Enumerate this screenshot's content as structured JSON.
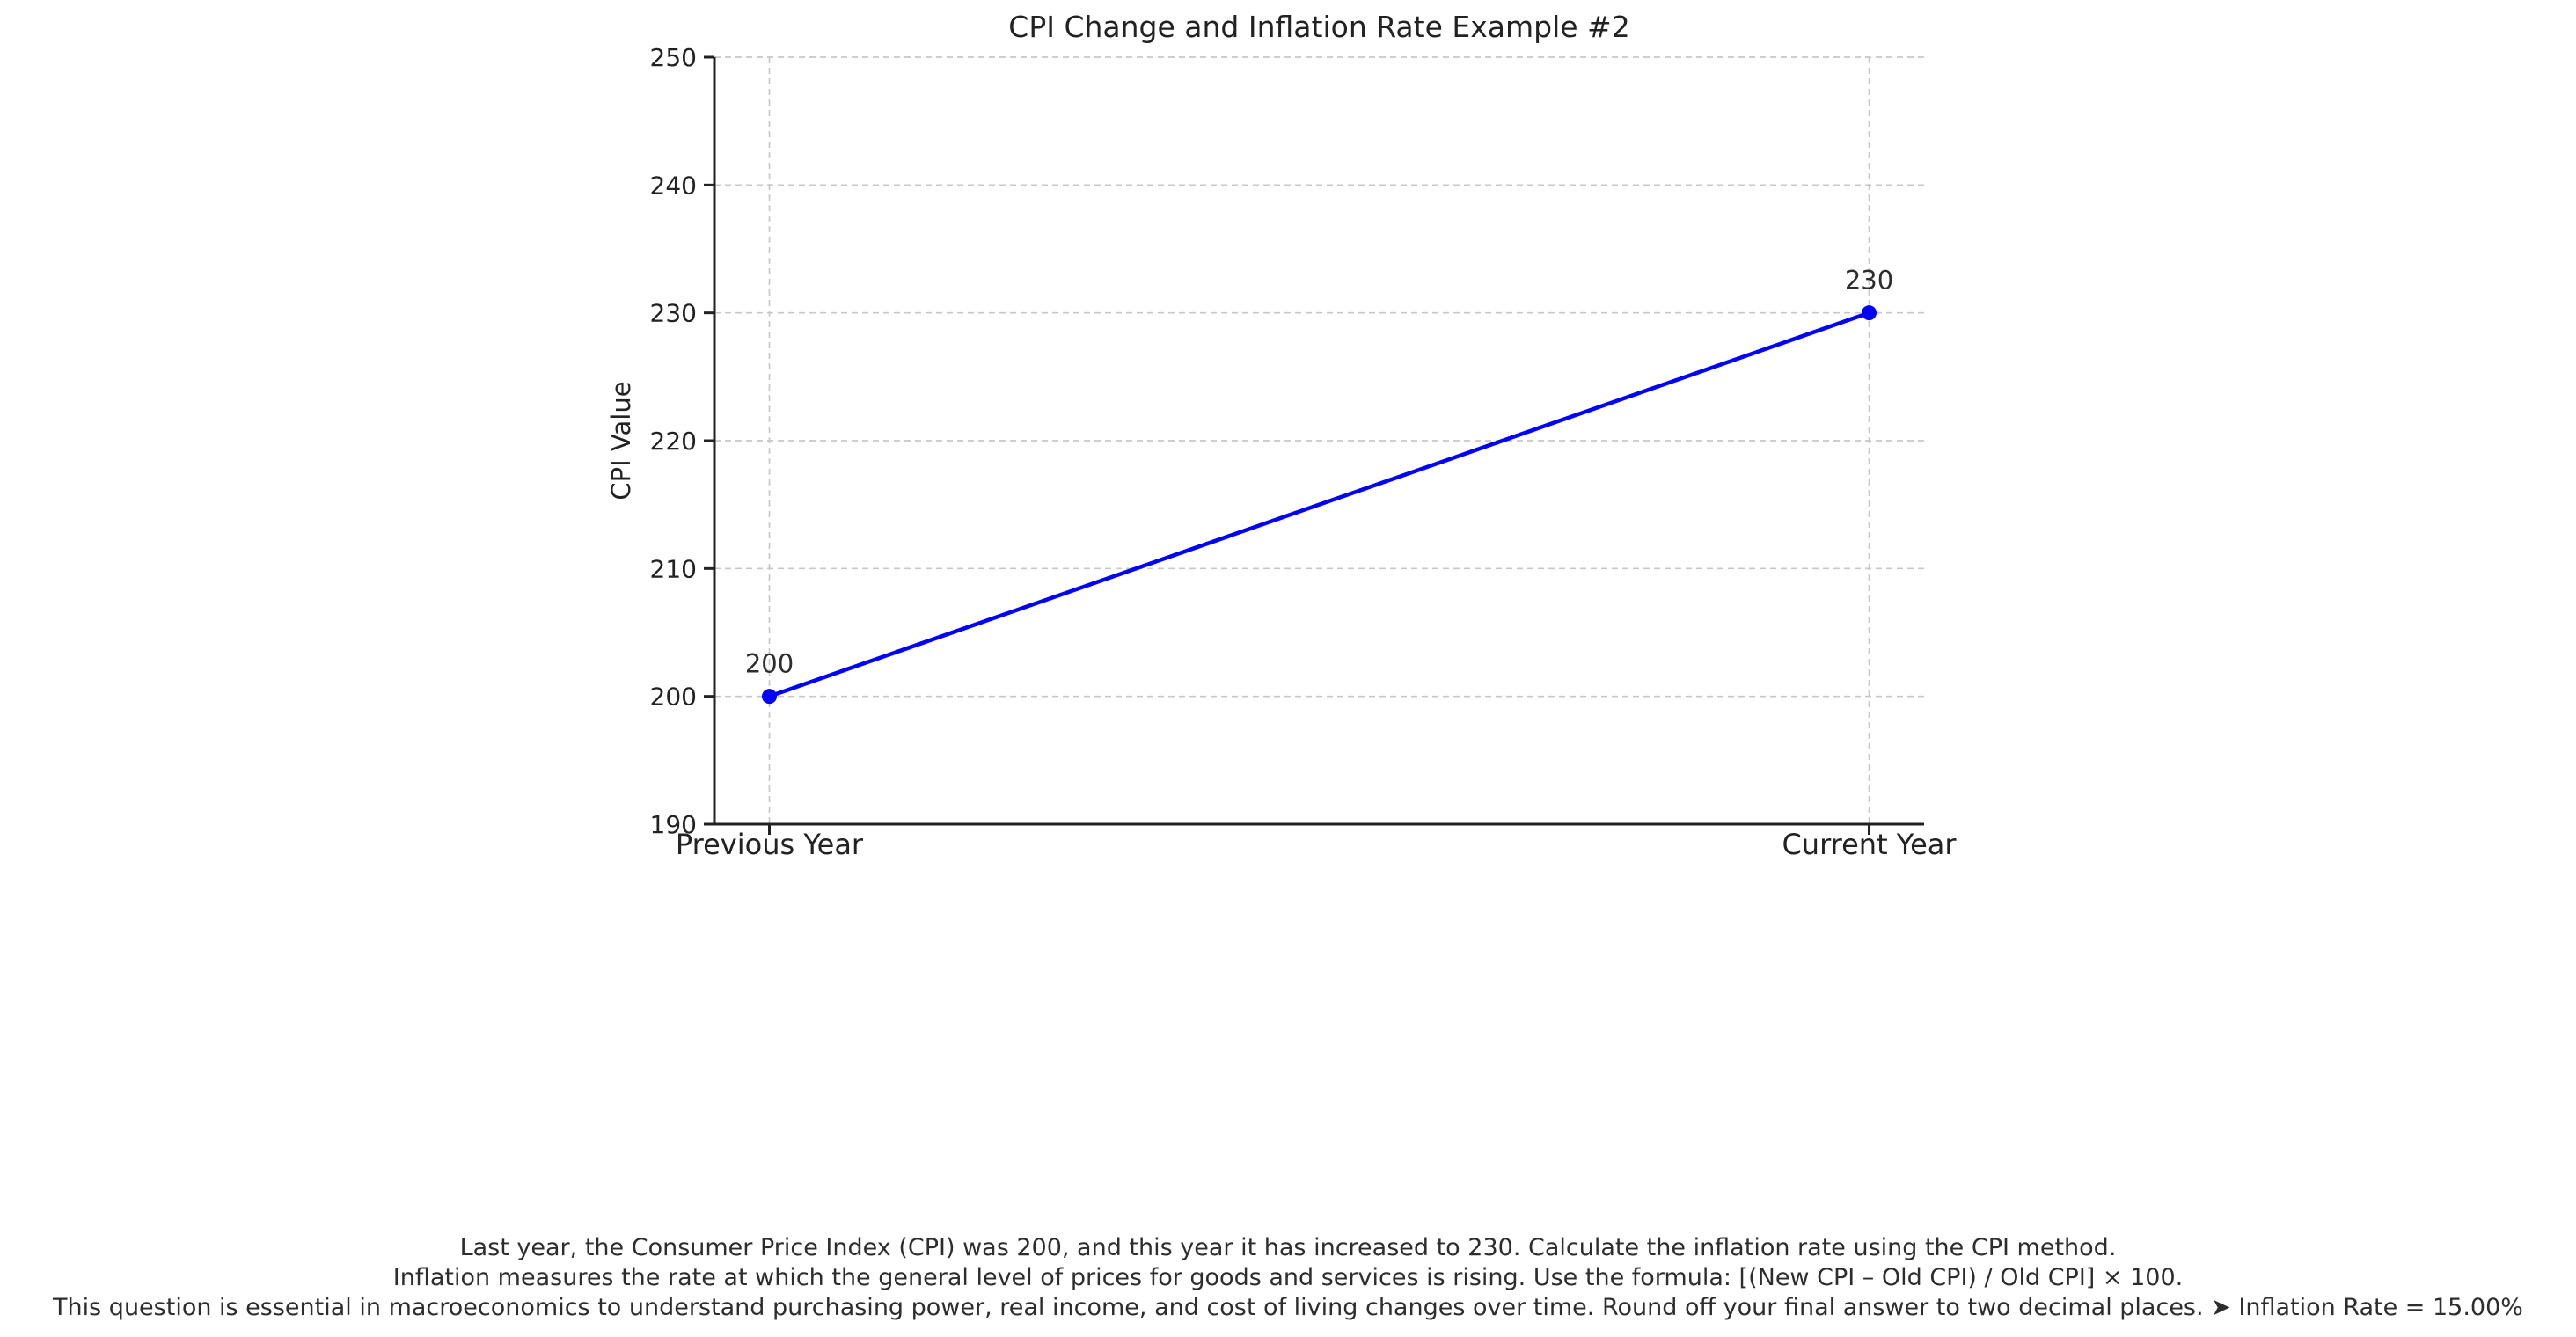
{
  "chart_data": {
    "type": "line",
    "title": "CPI Change and Inflation Rate Example #2",
    "ylabel": "CPI Value",
    "xlabel": "",
    "categories": [
      "Previous Year",
      "Current Year"
    ],
    "values": [
      200,
      230
    ],
    "point_labels": [
      "200",
      "230"
    ],
    "ylim": [
      190,
      250
    ],
    "yticks": [
      190,
      200,
      210,
      220,
      230,
      240,
      250
    ],
    "grid": true,
    "grid_style": "dashed",
    "legend_position": "none",
    "colors": {
      "line": "#0000ff",
      "marker": "#0000ff",
      "grid": "#c8c8c8",
      "axis": "#222222",
      "tick_text": "#222222",
      "title_text": "#222222",
      "background": "#ffffff"
    }
  },
  "caption": {
    "lines": [
      "Last year, the Consumer Price Index (CPI) was 200, and this year it has increased to 230. Calculate the inflation rate using the CPI method.",
      "Inflation measures the rate at which the general level of prices for goods and services is rising. Use the formula: [(New CPI – Old CPI) / Old CPI] × 100.",
      "This question is essential in macroeconomics to understand purchasing power, real income, and cost of living changes over time. Round off your final answer to two decimal places. ➤ Inflation Rate = 15.00%"
    ]
  }
}
